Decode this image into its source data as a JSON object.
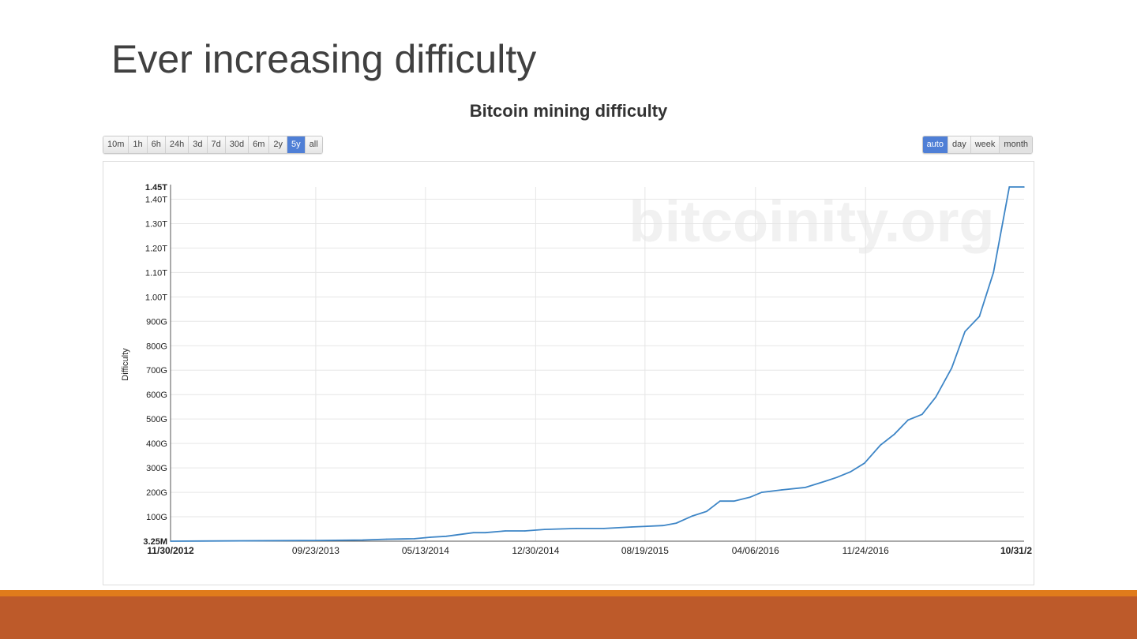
{
  "slide": {
    "title": "Ever increasing difficulty"
  },
  "range_buttons": [
    {
      "label": "10m"
    },
    {
      "label": "1h"
    },
    {
      "label": "6h"
    },
    {
      "label": "24h"
    },
    {
      "label": "3d"
    },
    {
      "label": "7d"
    },
    {
      "label": "30d"
    },
    {
      "label": "6m"
    },
    {
      "label": "2y"
    },
    {
      "label": "5y",
      "active": true
    },
    {
      "label": "all"
    }
  ],
  "resolution_buttons": [
    {
      "label": "auto",
      "active": true
    },
    {
      "label": "day"
    },
    {
      "label": "week"
    },
    {
      "label": "month"
    }
  ],
  "watermark": "bitcoinity.org",
  "colors": {
    "line": "#3d85c6",
    "accent": "#4f7fd6",
    "orange": "#e07b1b",
    "rust": "#bd5a2a"
  },
  "chart_data": {
    "type": "line",
    "title": "Bitcoin mining difficulty",
    "ylabel": "Difficulty",
    "xlabel": "",
    "unit_note": "y values in G (billions)",
    "ylim": [
      0,
      1450
    ],
    "xlim": [
      0,
      2310
    ],
    "y_ticks": [
      {
        "v": 0,
        "label": "3.25M",
        "bold": true
      },
      {
        "v": 100,
        "label": "100G"
      },
      {
        "v": 200,
        "label": "200G"
      },
      {
        "v": 300,
        "label": "300G"
      },
      {
        "v": 400,
        "label": "400G"
      },
      {
        "v": 500,
        "label": "500G"
      },
      {
        "v": 600,
        "label": "600G"
      },
      {
        "v": 700,
        "label": "700G"
      },
      {
        "v": 800,
        "label": "800G"
      },
      {
        "v": 900,
        "label": "900G"
      },
      {
        "v": 1000,
        "label": "1.00T"
      },
      {
        "v": 1100,
        "label": "1.10T"
      },
      {
        "v": 1200,
        "label": "1.20T"
      },
      {
        "v": 1300,
        "label": "1.30T"
      },
      {
        "v": 1400,
        "label": "1.40T"
      },
      {
        "v": 1450,
        "label": "1.45T",
        "bold": true
      }
    ],
    "x_ticks": [
      {
        "v": 0,
        "label": "11/30/2012",
        "bold": true
      },
      {
        "v": 393,
        "label": "09/23/2013"
      },
      {
        "v": 690,
        "label": "05/13/2014"
      },
      {
        "v": 988,
        "label": "12/30/2014"
      },
      {
        "v": 1284,
        "label": "08/19/2015"
      },
      {
        "v": 1583,
        "label": "04/06/2016"
      },
      {
        "v": 1881,
        "label": "11/24/2016"
      },
      {
        "v": 2280,
        "label": "10/31/2",
        "bold": true
      }
    ],
    "series": [
      {
        "name": "Difficulty",
        "x": [
          0,
          393,
          521,
          585,
          660,
          703,
          746,
          820,
          852,
          906,
          959,
          1012,
          1098,
          1173,
          1248,
          1290,
          1333,
          1369,
          1412,
          1451,
          1487,
          1525,
          1568,
          1600,
          1654,
          1718,
          1771,
          1803,
          1840,
          1878,
          1921,
          1959,
          1996,
          2034,
          2071,
          2114,
          2150,
          2189,
          2227,
          2270,
          2310
        ],
        "values": [
          0.003,
          3,
          5,
          8,
          10,
          16,
          20,
          35,
          35,
          42,
          42,
          48,
          52,
          52,
          58,
          61,
          64,
          74,
          103,
          122,
          164,
          164,
          180,
          200,
          210,
          220,
          245,
          261,
          284,
          319,
          393,
          438,
          496,
          519,
          590,
          709,
          858,
          920,
          1100,
          1450,
          1450
        ]
      }
    ]
  }
}
